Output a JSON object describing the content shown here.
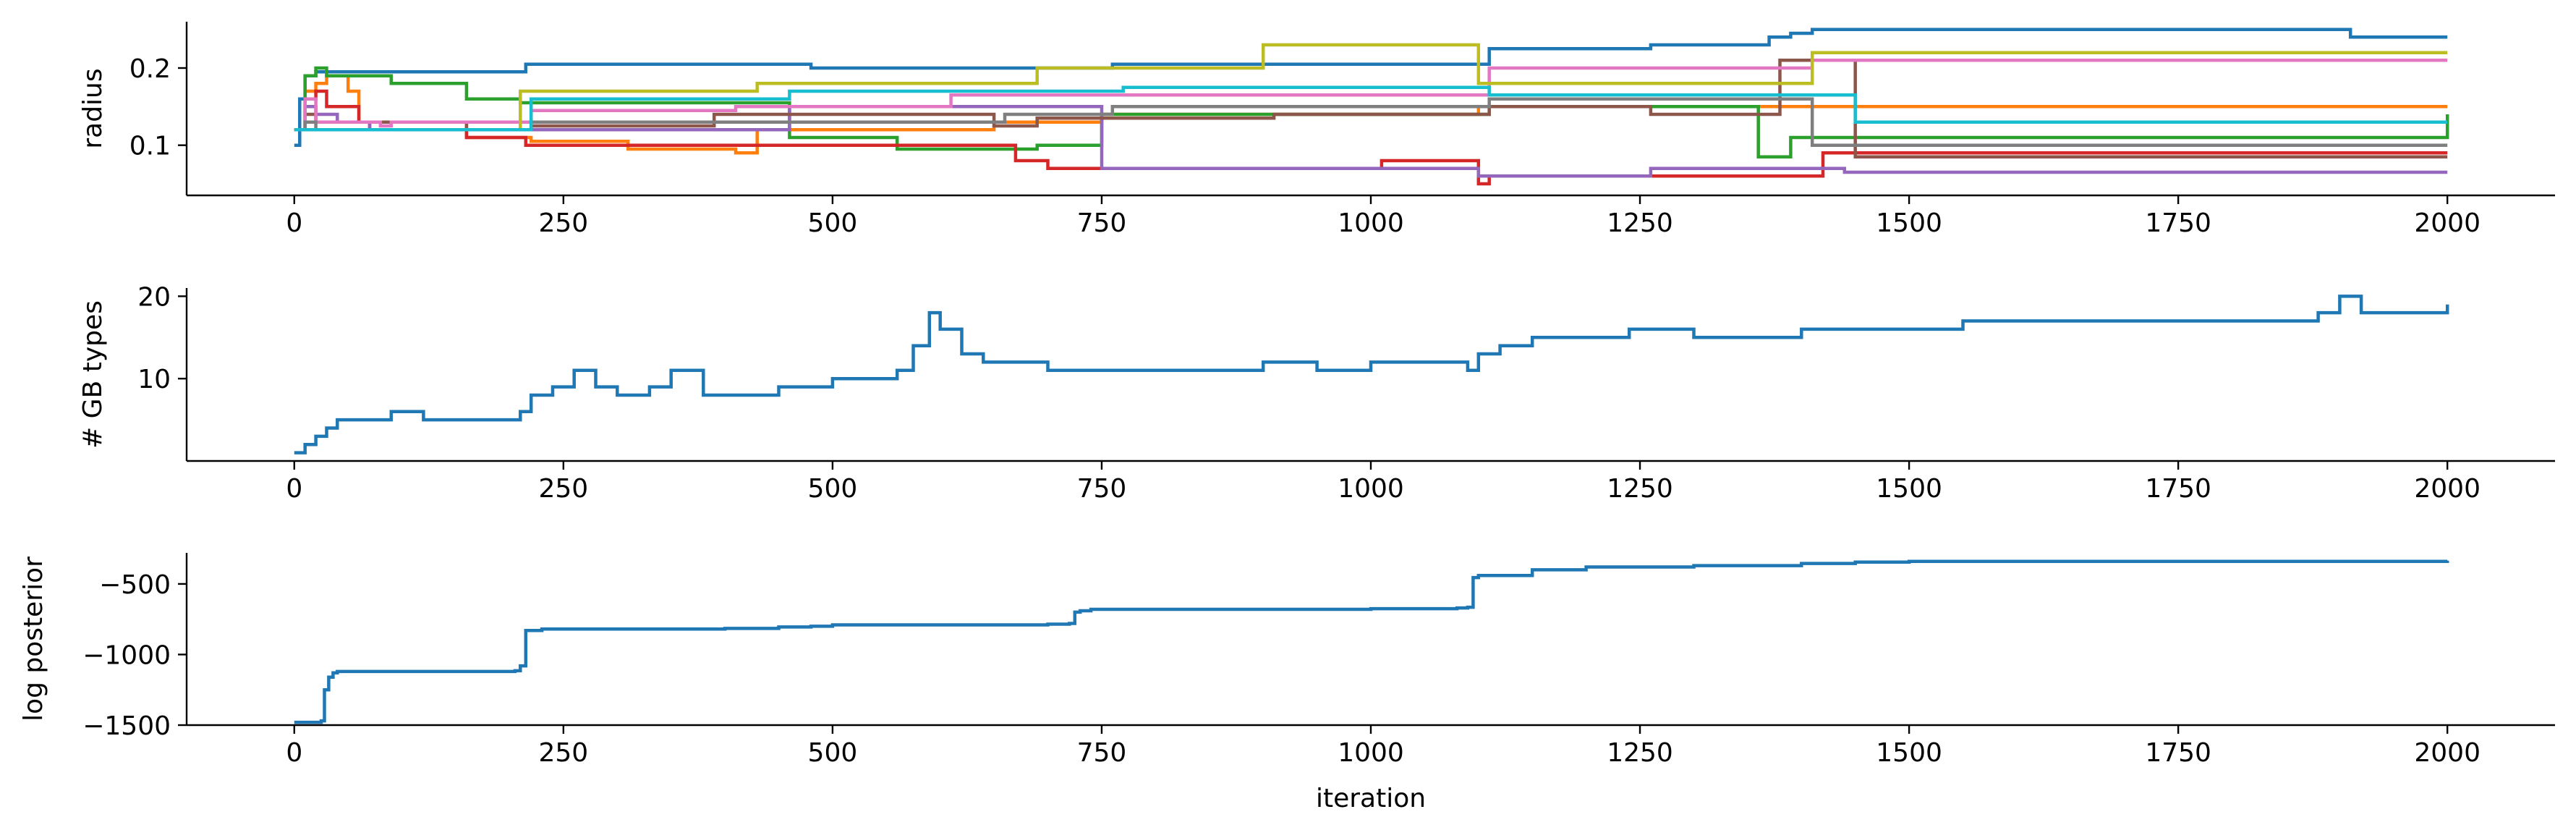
{
  "colors": {
    "tab_blue": "#1f77b4",
    "tab_orange": "#ff7f0e",
    "tab_green": "#2ca02c",
    "tab_red": "#d62728",
    "tab_purple": "#9467bd",
    "tab_brown": "#8c564b",
    "tab_pink": "#e377c2",
    "tab_gray": "#7f7f7f",
    "tab_olive": "#bcbd22",
    "tab_cyan": "#17becf",
    "axis": "#000000"
  },
  "chart_data": [
    {
      "type": "line",
      "xlabel": "",
      "ylabel": "radius",
      "xlim": [
        -100,
        2100
      ],
      "ylim": [
        0.035,
        0.26
      ],
      "xticks": [
        0,
        250,
        500,
        750,
        1000,
        1250,
        1500,
        1750,
        2000
      ],
      "xtick_labels": [
        "0",
        "250",
        "500",
        "750",
        "1000",
        "1250",
        "1500",
        "1750",
        "2000"
      ],
      "yticks": [
        0.1,
        0.2
      ],
      "ytick_labels": [
        "0.1",
        "0.2"
      ],
      "grid": false,
      "series": [
        {
          "color": "#1f77b4",
          "x": [
            0,
            5,
            10,
            20,
            210,
            215,
            460,
            480,
            750,
            760,
            1000,
            1100,
            1110,
            1250,
            1260,
            1360,
            1370,
            1380,
            1390,
            1400,
            1410,
            1900,
            1910,
            2000
          ],
          "y": [
            0.1,
            0.16,
            0.19,
            0.195,
            0.195,
            0.205,
            0.205,
            0.2,
            0.2,
            0.205,
            0.205,
            0.205,
            0.225,
            0.225,
            0.23,
            0.23,
            0.24,
            0.24,
            0.245,
            0.245,
            0.25,
            0.25,
            0.24,
            0.24
          ]
        },
        {
          "color": "#ff7f0e",
          "x": [
            0,
            10,
            20,
            30,
            50,
            60,
            150,
            160,
            210,
            220,
            300,
            310,
            400,
            410,
            420,
            430,
            600,
            650,
            700,
            750,
            1000,
            1100,
            1500,
            2000
          ],
          "y": [
            0.12,
            0.17,
            0.18,
            0.19,
            0.17,
            0.13,
            0.13,
            0.11,
            0.11,
            0.105,
            0.105,
            0.095,
            0.095,
            0.09,
            0.09,
            0.12,
            0.12,
            0.13,
            0.13,
            0.14,
            0.14,
            0.15,
            0.15,
            0.15
          ]
        },
        {
          "color": "#2ca02c",
          "x": [
            0,
            10,
            20,
            30,
            80,
            90,
            150,
            160,
            200,
            210,
            450,
            460,
            550,
            560,
            680,
            690,
            740,
            750,
            1100,
            1110,
            1350,
            1360,
            1380,
            1390,
            1450,
            2000
          ],
          "y": [
            0.12,
            0.19,
            0.2,
            0.19,
            0.19,
            0.18,
            0.18,
            0.16,
            0.16,
            0.155,
            0.155,
            0.11,
            0.11,
            0.095,
            0.095,
            0.1,
            0.1,
            0.14,
            0.14,
            0.15,
            0.15,
            0.085,
            0.085,
            0.11,
            0.11,
            0.14
          ]
        },
        {
          "color": "#d62728",
          "x": [
            0,
            10,
            20,
            30,
            40,
            60,
            70,
            150,
            160,
            210,
            215,
            660,
            670,
            690,
            700,
            1000,
            1010,
            1090,
            1100,
            1110,
            1400,
            1420,
            2000
          ],
          "y": [
            0.12,
            0.16,
            0.17,
            0.15,
            0.15,
            0.13,
            0.12,
            0.12,
            0.11,
            0.11,
            0.1,
            0.1,
            0.08,
            0.08,
            0.07,
            0.07,
            0.08,
            0.08,
            0.05,
            0.06,
            0.06,
            0.09,
            0.09
          ]
        },
        {
          "color": "#9467bd",
          "x": [
            0,
            10,
            20,
            40,
            60,
            70,
            450,
            460,
            720,
            750,
            1090,
            1100,
            1250,
            1260,
            1430,
            1440,
            2000
          ],
          "y": [
            0.12,
            0.15,
            0.14,
            0.13,
            0.13,
            0.12,
            0.12,
            0.15,
            0.15,
            0.07,
            0.07,
            0.06,
            0.06,
            0.07,
            0.07,
            0.065,
            0.065
          ]
        },
        {
          "color": "#8c564b",
          "x": [
            0,
            10,
            20,
            50,
            150,
            160,
            210,
            220,
            380,
            390,
            600,
            650,
            680,
            690,
            900,
            910,
            1100,
            1110,
            1250,
            1260,
            1370,
            1380,
            1440,
            1450,
            2000
          ],
          "y": [
            0.12,
            0.14,
            0.13,
            0.13,
            0.13,
            0.12,
            0.12,
            0.125,
            0.125,
            0.14,
            0.14,
            0.125,
            0.125,
            0.135,
            0.135,
            0.14,
            0.14,
            0.15,
            0.15,
            0.14,
            0.14,
            0.21,
            0.21,
            0.085,
            0.085
          ]
        },
        {
          "color": "#e377c2",
          "x": [
            0,
            10,
            20,
            60,
            80,
            90,
            210,
            220,
            400,
            410,
            600,
            610,
            1100,
            1110,
            1400,
            1410,
            2000
          ],
          "y": [
            0.12,
            0.16,
            0.13,
            0.13,
            0.125,
            0.13,
            0.13,
            0.145,
            0.145,
            0.15,
            0.15,
            0.165,
            0.165,
            0.2,
            0.2,
            0.21,
            0.21
          ]
        },
        {
          "color": "#7f7f7f",
          "x": [
            0,
            10,
            20,
            40,
            210,
            220,
            650,
            660,
            750,
            760,
            1100,
            1110,
            1400,
            1410,
            2000
          ],
          "y": [
            0.12,
            0.13,
            0.12,
            0.12,
            0.12,
            0.13,
            0.13,
            0.14,
            0.14,
            0.15,
            0.15,
            0.16,
            0.16,
            0.1,
            0.1
          ]
        },
        {
          "color": "#bcbd22",
          "x": [
            0,
            200,
            210,
            420,
            430,
            680,
            690,
            890,
            900,
            1090,
            1100,
            1400,
            1410,
            2000
          ],
          "y": [
            0.12,
            0.12,
            0.17,
            0.17,
            0.18,
            0.18,
            0.2,
            0.2,
            0.23,
            0.23,
            0.18,
            0.18,
            0.22,
            0.22
          ]
        },
        {
          "color": "#17becf",
          "x": [
            0,
            210,
            220,
            450,
            460,
            760,
            770,
            1100,
            1110,
            1440,
            1450,
            2000
          ],
          "y": [
            0.12,
            0.12,
            0.16,
            0.16,
            0.17,
            0.17,
            0.175,
            0.175,
            0.165,
            0.165,
            0.13,
            0.13
          ]
        }
      ]
    },
    {
      "type": "line",
      "xlabel": "",
      "ylabel": "# GB types",
      "xlim": [
        -100,
        2100
      ],
      "ylim": [
        0,
        21
      ],
      "xticks": [
        0,
        250,
        500,
        750,
        1000,
        1250,
        1500,
        1750,
        2000
      ],
      "xtick_labels": [
        "0",
        "250",
        "500",
        "750",
        "1000",
        "1250",
        "1500",
        "1750",
        "2000"
      ],
      "yticks": [
        10,
        20
      ],
      "ytick_labels": [
        "10",
        "20"
      ],
      "grid": false,
      "series": [
        {
          "color": "#1f77b4",
          "x": [
            0,
            10,
            20,
            30,
            40,
            60,
            90,
            120,
            150,
            180,
            200,
            210,
            220,
            240,
            260,
            280,
            300,
            330,
            350,
            380,
            420,
            450,
            480,
            500,
            540,
            560,
            575,
            590,
            600,
            620,
            640,
            680,
            700,
            720,
            750,
            800,
            850,
            900,
            950,
            1000,
            1050,
            1090,
            1100,
            1120,
            1150,
            1200,
            1240,
            1260,
            1300,
            1350,
            1400,
            1450,
            1500,
            1550,
            1600,
            1650,
            1700,
            1750,
            1800,
            1850,
            1880,
            1900,
            1920,
            1950,
            2000
          ],
          "y": [
            1,
            2,
            3,
            4,
            5,
            5,
            6,
            5,
            5,
            5,
            5,
            6,
            8,
            9,
            11,
            9,
            8,
            9,
            11,
            8,
            8,
            9,
            9,
            10,
            10,
            11,
            14,
            18,
            16,
            13,
            12,
            12,
            11,
            11,
            11,
            11,
            11,
            12,
            11,
            12,
            12,
            11,
            13,
            14,
            15,
            15,
            16,
            16,
            15,
            15,
            16,
            16,
            16,
            17,
            17,
            17,
            17,
            17,
            17,
            17,
            18,
            20,
            18,
            18,
            19
          ]
        }
      ]
    },
    {
      "type": "line",
      "xlabel": "iteration",
      "ylabel": "log posterior",
      "xlim": [
        -100,
        2100
      ],
      "ylim": [
        -1500,
        -280
      ],
      "xticks": [
        0,
        250,
        500,
        750,
        1000,
        1250,
        1500,
        1750,
        2000
      ],
      "xtick_labels": [
        "0",
        "250",
        "500",
        "750",
        "1000",
        "1250",
        "1500",
        "1750",
        "2000"
      ],
      "yticks": [
        -1500,
        -1000,
        -500
      ],
      "ytick_labels": [
        "−1500",
        "−1000",
        "−500"
      ],
      "grid": false,
      "series": [
        {
          "color": "#1f77b4",
          "x": [
            0,
            25,
            28,
            32,
            36,
            40,
            60,
            205,
            210,
            215,
            230,
            300,
            400,
            440,
            450,
            480,
            500,
            700,
            720,
            725,
            730,
            740,
            1000,
            1080,
            1090,
            1095,
            1100,
            1150,
            1200,
            1300,
            1400,
            1450,
            1500,
            2000
          ],
          "y": [
            -1480,
            -1470,
            -1250,
            -1160,
            -1130,
            -1120,
            -1120,
            -1115,
            -1080,
            -830,
            -820,
            -820,
            -815,
            -815,
            -805,
            -800,
            -790,
            -785,
            -780,
            -700,
            -690,
            -680,
            -675,
            -670,
            -665,
            -455,
            -440,
            -400,
            -380,
            -370,
            -355,
            -345,
            -340,
            -335
          ]
        }
      ]
    }
  ]
}
